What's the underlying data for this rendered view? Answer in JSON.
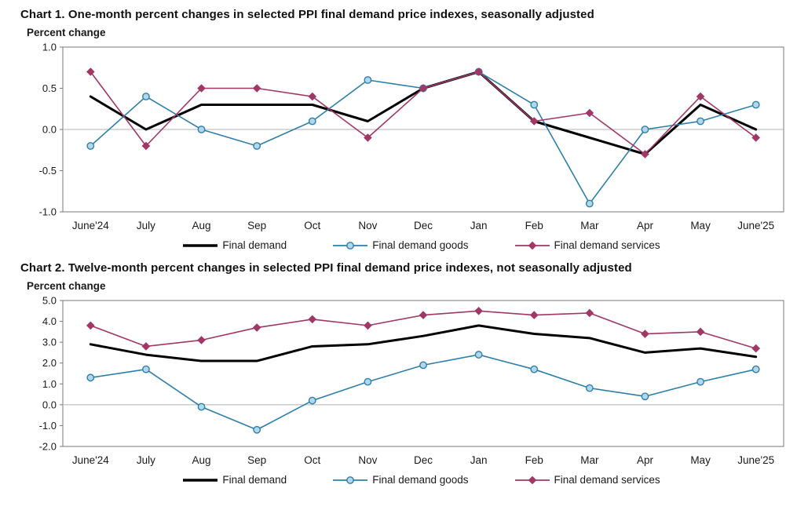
{
  "page": {
    "background": "#ffffff"
  },
  "chart_data": [
    {
      "type": "line",
      "title": "Chart 1. One-month percent changes in selected PPI final demand price indexes, seasonally adjusted",
      "ylabel": "Percent change",
      "xlabel": "",
      "ylim": [
        -1.0,
        1.0
      ],
      "ytick_step": 0.5,
      "grid": "zero-line-only",
      "legend_position": "bottom",
      "categories": [
        "June'24",
        "July",
        "Aug",
        "Sep",
        "Oct",
        "Nov",
        "Dec",
        "Jan",
        "Feb",
        "Mar",
        "Apr",
        "May",
        "June'25"
      ],
      "series": [
        {
          "name": "Final demand",
          "color": "#000000",
          "marker": "none",
          "marker_fill": "#000000",
          "line_width": 3,
          "values": [
            0.4,
            0.0,
            0.3,
            0.3,
            0.3,
            0.1,
            0.5,
            0.7,
            0.1,
            -0.1,
            -0.3,
            0.3,
            0.0
          ]
        },
        {
          "name": "Final demand goods",
          "color": "#2d7fa9",
          "marker": "circle",
          "marker_fill": "#b3d7ea",
          "line_width": 1.6,
          "values": [
            -0.2,
            0.4,
            0.0,
            -0.2,
            0.1,
            0.6,
            0.5,
            0.7,
            0.3,
            -0.9,
            0.0,
            0.1,
            0.3
          ]
        },
        {
          "name": "Final demand services",
          "color": "#a13766",
          "marker": "diamond",
          "marker_fill": "#a13766",
          "line_width": 1.6,
          "values": [
            0.7,
            -0.2,
            0.5,
            0.5,
            0.4,
            -0.1,
            0.5,
            0.7,
            0.1,
            0.2,
            -0.3,
            0.4,
            -0.1
          ]
        }
      ]
    },
    {
      "type": "line",
      "title": "Chart 2. Twelve-month percent changes in selected PPI final demand price indexes, not seasonally adjusted",
      "ylabel": "Percent change",
      "xlabel": "",
      "ylim": [
        -2.0,
        5.0
      ],
      "ytick_step": 1.0,
      "grid": "zero-line-only",
      "legend_position": "bottom",
      "categories": [
        "June'24",
        "July",
        "Aug",
        "Sep",
        "Oct",
        "Nov",
        "Dec",
        "Jan",
        "Feb",
        "Mar",
        "Apr",
        "May",
        "June'25"
      ],
      "series": [
        {
          "name": "Final demand",
          "color": "#000000",
          "marker": "none",
          "marker_fill": "#000000",
          "line_width": 3,
          "values": [
            2.9,
            2.4,
            2.1,
            2.1,
            2.8,
            2.9,
            3.3,
            3.8,
            3.4,
            3.2,
            2.5,
            2.7,
            2.3
          ]
        },
        {
          "name": "Final demand goods",
          "color": "#2d7fa9",
          "marker": "circle",
          "marker_fill": "#b3d7ea",
          "line_width": 1.6,
          "values": [
            1.3,
            1.7,
            -0.1,
            -1.2,
            0.2,
            1.1,
            1.9,
            2.4,
            1.7,
            0.8,
            0.4,
            1.1,
            1.7
          ]
        },
        {
          "name": "Final demand services",
          "color": "#a13766",
          "marker": "diamond",
          "marker_fill": "#a13766",
          "line_width": 1.6,
          "values": [
            3.8,
            2.8,
            3.1,
            3.7,
            4.1,
            3.8,
            4.3,
            4.5,
            4.3,
            4.4,
            3.4,
            3.5,
            2.7
          ]
        }
      ]
    }
  ]
}
